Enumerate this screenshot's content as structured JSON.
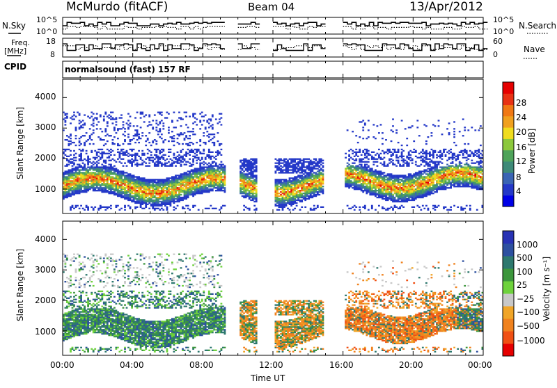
{
  "header": {
    "title": "McMurdo (fitACF)",
    "beam": "Beam 04",
    "date": "13/Apr/2012"
  },
  "left_labels": {
    "nsky": "N.Sky",
    "freq": "Freq.",
    "freq_unit": "[MHz]",
    "cpid": "CPID"
  },
  "right_labels": {
    "nsearch": "N.Search",
    "nave": "Nave"
  },
  "cpid_text": "normalsound (fast) 157 RF",
  "colors": {
    "power": [
      "#0000e6",
      "#2438c8",
      "#3a64b4",
      "#3e8a78",
      "#4ea35a",
      "#8cc83c",
      "#f0dc1e",
      "#f0a01e",
      "#f07814",
      "#e83214",
      "#e60000"
    ],
    "velocity": [
      "#e60000",
      "#f05014",
      "#f0821e",
      "#f0a528",
      "#c8c8c8",
      "#6ed23c",
      "#3c963c",
      "#2d786e",
      "#2d50a0",
      "#2832b4"
    ]
  },
  "chart_data": [
    {
      "type": "line",
      "panel": "N.Sky / N.Search",
      "title": "McMurdo (fitACF)",
      "left_axis": {
        "ticks": [
          "10^5",
          "10^0"
        ]
      },
      "right_axis": {
        "ticks": [
          "10^5",
          "10^0"
        ]
      },
      "series": [
        {
          "name": "N.Sky",
          "style": "solid"
        },
        {
          "name": "N.Search",
          "style": "dotted"
        }
      ],
      "data_gaps_hours": [
        [
          9.2,
          10.0
        ],
        [
          11.0,
          12.0
        ],
        [
          14.8,
          16.0
        ]
      ]
    },
    {
      "type": "line",
      "panel": "Freq. / Nave",
      "left_axis": {
        "label": "Freq. [MHz]",
        "ticks": [
          "18",
          "8"
        ],
        "range": [
          8,
          18
        ]
      },
      "right_axis": {
        "label": "Nave",
        "ticks": [
          "60",
          "0"
        ],
        "range": [
          0,
          60
        ]
      },
      "series": [
        {
          "name": "Freq. [MHz]",
          "style": "solid",
          "typical": [
            10,
            14
          ]
        },
        {
          "name": "Nave",
          "style": "dotted",
          "typical": [
            20,
            35
          ]
        }
      ]
    },
    {
      "type": "heatmap",
      "panel": "Power",
      "ylabel": "Slant Range [km]",
      "yticks": [
        "1000",
        "2000",
        "3000",
        "4000"
      ],
      "ylim": [
        200,
        4600
      ],
      "colorbar": {
        "label": "Power [dB]",
        "ticks": [
          "4",
          "8",
          "12",
          "16",
          "20",
          "24",
          "28"
        ],
        "range": [
          0,
          30
        ]
      },
      "scatter_bands_km": [
        700,
        1800
      ],
      "data_gaps_hours": [
        [
          9.2,
          10.0
        ],
        [
          11.0,
          12.0
        ],
        [
          14.8,
          16.0
        ]
      ]
    },
    {
      "type": "heatmap",
      "panel": "Velocity",
      "ylabel": "Slant Range [km]",
      "yticks": [
        "1000",
        "2000",
        "3000",
        "4000"
      ],
      "ylim": [
        200,
        4600
      ],
      "colorbar": {
        "label": "Velocity [m s⁻¹]",
        "ticks": [
          "1000",
          "500",
          "100",
          "25",
          "−25",
          "−100",
          "−500",
          "−1000"
        ]
      },
      "xlabel": "Time UT",
      "xticks": [
        "00:00",
        "04:00",
        "08:00",
        "12:00",
        "16:00",
        "20:00",
        "00:00"
      ],
      "xlim": [
        0,
        24
      ]
    }
  ]
}
